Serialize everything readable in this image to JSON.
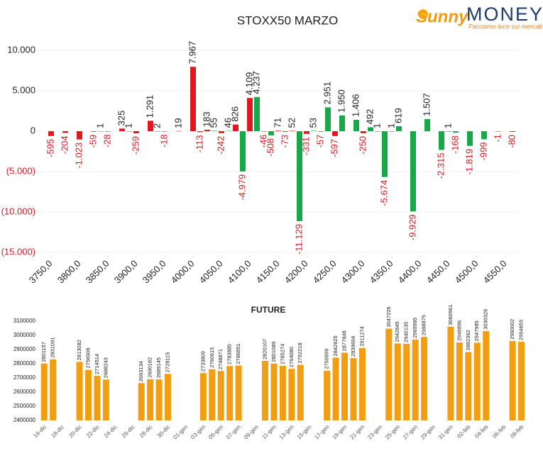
{
  "logo": {
    "brand": "Sunny",
    "name": "MONEY",
    "tagline": "Facciamo luce sui mercati"
  },
  "chart_data": [
    {
      "type": "bar",
      "title": "STOXX50 MARZO",
      "xlim": [
        3725,
        4575
      ],
      "xticks": [
        {
          "value": 3750,
          "label": "3750,0"
        },
        {
          "value": 3800,
          "label": "3800,0"
        },
        {
          "value": 3850,
          "label": "3850,0"
        },
        {
          "value": 3900,
          "label": "3900,0"
        },
        {
          "value": 3950,
          "label": "3950,0"
        },
        {
          "value": 4000,
          "label": "4000,0"
        },
        {
          "value": 4050,
          "label": "4050,0"
        },
        {
          "value": 4100,
          "label": "4100,0"
        },
        {
          "value": 4150,
          "label": "4150,0"
        },
        {
          "value": 4200,
          "label": "4200,0"
        },
        {
          "value": 4250,
          "label": "4250,0"
        },
        {
          "value": 4300,
          "label": "4300,0"
        },
        {
          "value": 4350,
          "label": "4350,0"
        },
        {
          "value": 4400,
          "label": "4400,0"
        },
        {
          "value": 4450,
          "label": "4450,0"
        },
        {
          "value": 4500,
          "label": "4500,0"
        },
        {
          "value": 4550,
          "label": "4550,0"
        }
      ],
      "ylim": [
        -15000,
        11500
      ],
      "yticks": [
        {
          "value": 10000,
          "label": "10.000"
        },
        {
          "value": 5000,
          "label": "5.000"
        },
        0,
        {
          "value": -5000,
          "label": "(5.000)"
        },
        {
          "value": -10000,
          "label": "(10.000)"
        },
        {
          "value": -15000,
          "label": "(15.000)"
        }
      ],
      "grid": true,
      "series": [
        {
          "color": "#e3171e",
          "x": [
            3750,
            3775,
            3800,
            3825,
            3850,
            3875,
            3900,
            3925,
            3950,
            3975,
            4000,
            4012.5,
            4025,
            4050,
            4075,
            4100,
            4125,
            4150,
            4162.5,
            4175,
            4200,
            4225,
            4250,
            4300,
            4325,
            4350,
            4450,
            4537.5,
            4562.5
          ],
          "values": [
            -595,
            -204,
            -1023,
            -59,
            -28,
            325,
            -259,
            1291,
            -18,
            19,
            7967,
            -113,
            183,
            -242,
            826,
            4109,
            -46,
            71,
            -73,
            52,
            -331,
            -57,
            -597,
            -250,
            1,
            1,
            1,
            -1,
            -80
          ],
          "value_labels": [
            "-595",
            "-204",
            "-1.023",
            "-59",
            "-28",
            "325",
            "-259",
            "1.291",
            "-18",
            "19",
            "7.967",
            "-113",
            "183",
            "-242",
            "826",
            "4.109",
            "-46",
            "71",
            "-73",
            "52",
            "-331",
            "-57",
            "-597",
            "-250",
            "1",
            "1",
            "1",
            "-1",
            "-80"
          ]
        },
        {
          "color": "#17a84a",
          "x": [
            3837.5,
            3887.5,
            3937.5,
            4037.5,
            4062.5,
            4087.5,
            4112.5,
            4137.5,
            4187.5,
            4212.5,
            4237.5,
            4262.5,
            4287.5,
            4312.5,
            4337.5,
            4362.5,
            4387.5,
            4412.5,
            4437.5,
            4462.5,
            4487.5,
            4512.5
          ],
          "values": [
            1,
            1,
            2,
            55,
            46,
            -4979,
            4237,
            -508,
            -11129,
            53,
            2951,
            1950,
            1406,
            492,
            -5674,
            619,
            -9929,
            1507,
            -2315,
            -168,
            -1819,
            -999
          ],
          "value_labels": [
            "1",
            "1",
            "2",
            "55",
            "46",
            "-4.979",
            "4.237",
            "-508",
            "-11.129",
            "53",
            "2.951",
            "1.950",
            "1.406",
            "492",
            "-5.674",
            "619",
            "-9.929",
            "1.507",
            "-2.315",
            "-168",
            "-1.819",
            "-999"
          ]
        }
      ]
    },
    {
      "type": "bar",
      "title": "FUTURE",
      "color": "#f29e12",
      "grid": false,
      "categories": [
        "16-dic",
        null,
        "18-dic",
        null,
        "20-dic",
        null,
        "22-dic",
        null,
        "24-dic",
        null,
        "26-dic",
        null,
        "28-dic",
        null,
        "30-dic",
        null,
        "01-gen",
        null,
        "03-gen",
        null,
        "05-gen",
        null,
        "07-gen",
        null,
        "09-gen",
        null,
        "11-gen",
        null,
        "13-gen",
        null,
        "15-gen",
        null,
        "17-gen",
        null,
        "19-gen",
        null,
        "21-gen",
        null,
        "23-gen",
        null,
        "25-gen",
        null,
        "27-gen",
        null,
        "29-gen",
        null,
        "31-gen",
        null,
        "02-feb",
        null,
        "04-feb",
        null,
        "06-feb",
        null,
        "08-feb"
      ],
      "values": [
        2801157,
        2831091,
        null,
        null,
        2813082,
        2756906,
        2714514,
        2688243,
        null,
        null,
        null,
        2663134,
        2690182,
        2689145,
        2728115,
        null,
        null,
        null,
        2733809,
        2760615,
        2748871,
        2783885,
        2786851,
        null,
        null,
        2820107,
        2801089,
        2785274,
        2764080,
        2792218,
        null,
        null,
        2750999,
        2842625,
        2877848,
        2839694,
        2911274,
        null,
        null,
        3047226,
        2942645,
        2940135,
        2969985,
        2988875,
        null,
        null,
        3060961,
        2949896,
        2882362,
        2947985,
        3030326,
        null,
        null,
        2960002,
        2954655
      ],
      "ylim": [
        2400000,
        3100000
      ],
      "yticks": [
        2400000,
        2500000,
        2600000,
        2700000,
        2800000,
        2900000,
        3000000,
        3100000
      ]
    }
  ]
}
